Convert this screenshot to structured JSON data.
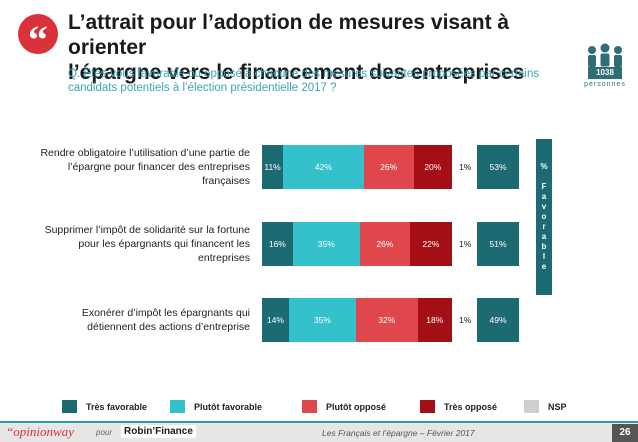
{
  "header": {
    "quote_mark": "“",
    "title_line1": "L’attrait pour l’adoption de mesures visant à orienter",
    "title_line2": "l’épargne vers le financement des entreprises",
    "question_line1": "Q. Etes-vous favorable ou opposé à chacune des mesures suivantes proposées par certains",
    "question_line2": "candidats potentiels à l’élection présidentielle 2017 ?",
    "sample_count": "1038",
    "sample_label": "personnes"
  },
  "chart_data": {
    "type": "bar",
    "stacked": true,
    "orientation": "horizontal",
    "categories": [
      [
        "Rendre obligatoire l’utilisation d’une partie de",
        "l’épargne pour financer des entreprises",
        "françaises"
      ],
      [
        "Supprimer l’impôt de solidarité sur la fortune",
        "pour les épargnants qui financent les",
        "entreprises"
      ],
      [
        "Exonérer d’impôt les épargnants qui",
        "détiennent des actions d’entreprise"
      ]
    ],
    "series": [
      {
        "name": "Très favorable",
        "color": "#1d6b72",
        "values": [
          11,
          16,
          14
        ]
      },
      {
        "name": "Plutôt favorable",
        "color": "#34c1cc",
        "values": [
          42,
          35,
          35
        ]
      },
      {
        "name": "Plutôt opposé",
        "color": "#e0474c",
        "values": [
          26,
          26,
          32
        ]
      },
      {
        "name": "Très opposé",
        "color": "#a30f14",
        "values": [
          20,
          22,
          18
        ]
      },
      {
        "name": "NSP",
        "color": "#cfcfcf",
        "values": [
          1,
          1,
          1
        ]
      }
    ],
    "favorable_total": [
      53,
      51,
      49
    ],
    "favorable_header": "% Favorable",
    "value_suffix": "%"
  },
  "footer": {
    "brand_opinion": "“opinionway",
    "brand_pour": "pour",
    "brand_robin": "Robin’Finance",
    "caption": "Les Français et l’épargne – Février 2017",
    "page_number": "26"
  }
}
